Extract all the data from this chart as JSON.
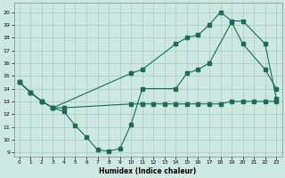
{
  "xlabel": "Humidex (Indice chaleur)",
  "bg_color": "#cce8e0",
  "grid_color": "#aacec8",
  "line_color": "#1a6b5a",
  "xlim": [
    -0.5,
    23.5
  ],
  "ylim": [
    8.7,
    20.7
  ],
  "yticks": [
    9,
    10,
    11,
    12,
    13,
    14,
    15,
    16,
    17,
    18,
    19,
    20
  ],
  "xticks": [
    0,
    1,
    2,
    3,
    4,
    5,
    6,
    7,
    8,
    9,
    10,
    11,
    12,
    13,
    14,
    15,
    16,
    17,
    18,
    19,
    20,
    21,
    22,
    23
  ],
  "line1_x": [
    0,
    1,
    2,
    3,
    4,
    10,
    11,
    12,
    13,
    14,
    15,
    16,
    17,
    18,
    19,
    20,
    21,
    22,
    23
  ],
  "line1_y": [
    14.5,
    13.7,
    13.0,
    12.5,
    12.5,
    12.8,
    12.8,
    12.8,
    12.8,
    12.8,
    12.8,
    12.8,
    12.8,
    12.8,
    13.0,
    13.0,
    13.0,
    13.0,
    13.0
  ],
  "line2_x": [
    0,
    1,
    2,
    3,
    4,
    5,
    6,
    7,
    8,
    9,
    10,
    11,
    14,
    15,
    16,
    17,
    19,
    20,
    22,
    23
  ],
  "line2_y": [
    14.5,
    13.7,
    13.0,
    12.5,
    12.2,
    11.1,
    10.2,
    9.2,
    9.1,
    9.3,
    11.2,
    14.0,
    14.0,
    15.2,
    15.5,
    16.0,
    19.2,
    17.5,
    15.5,
    14.0
  ],
  "line3_x": [
    0,
    1,
    2,
    3,
    10,
    11,
    14,
    15,
    16,
    17,
    18,
    19,
    20,
    22,
    23
  ],
  "line3_y": [
    14.5,
    13.7,
    13.0,
    12.5,
    15.2,
    15.5,
    17.5,
    18.0,
    18.2,
    19.0,
    20.0,
    19.3,
    19.3,
    17.5,
    13.2
  ]
}
